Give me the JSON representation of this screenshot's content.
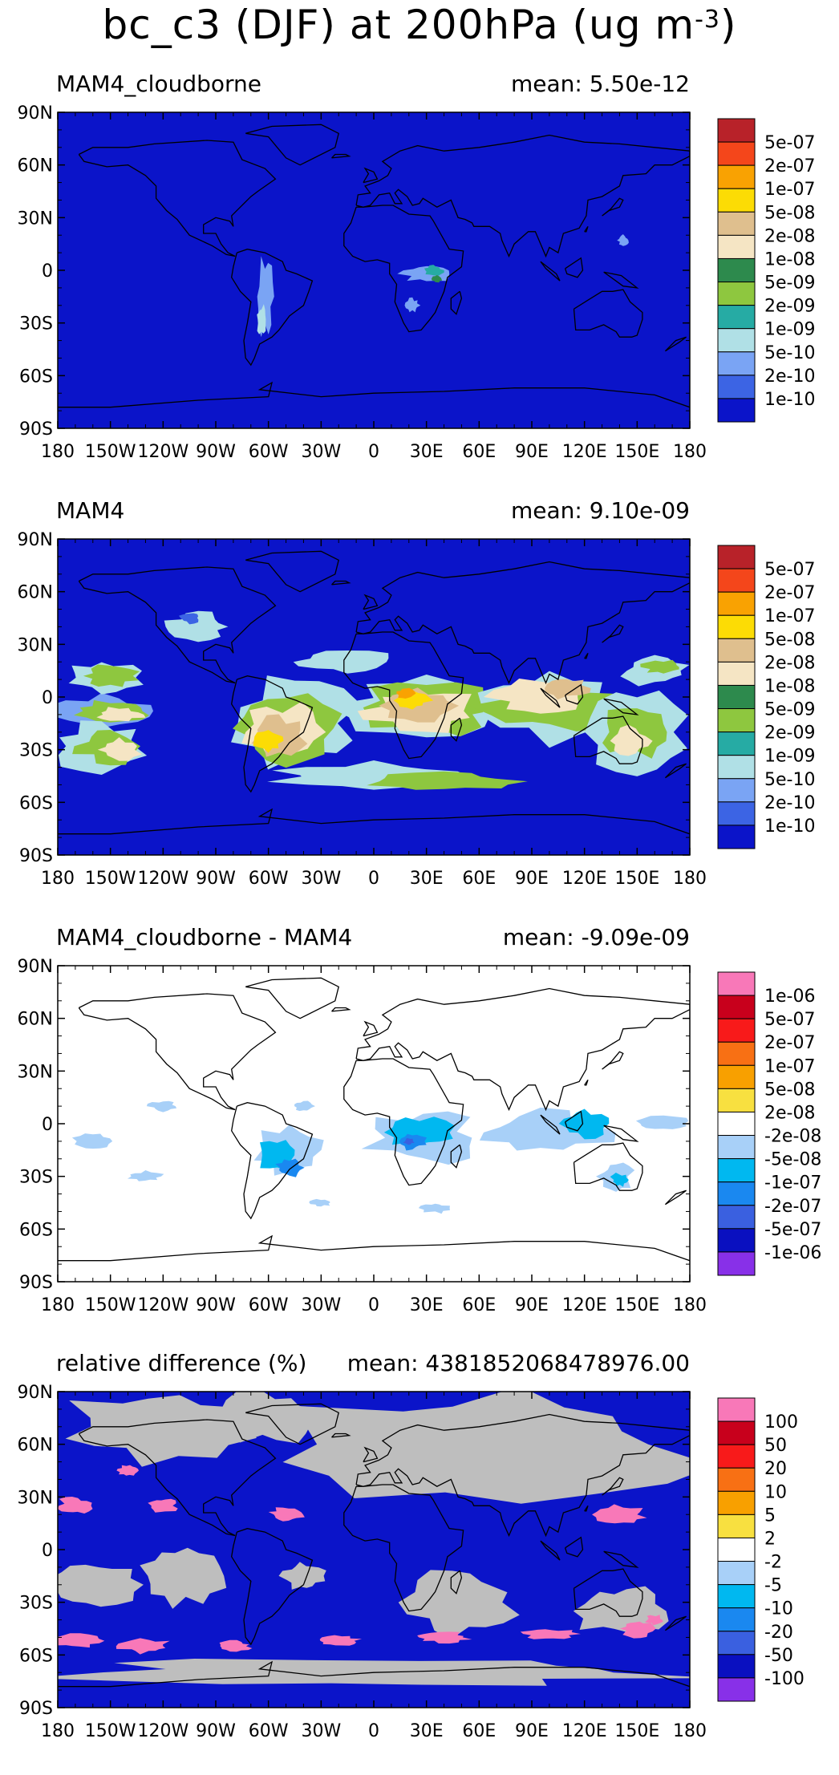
{
  "title": {
    "main": "bc_c3 (DJF) at 200hPa (ug m",
    "superscript": "-3",
    "close": ")"
  },
  "x_ticks": [
    "180",
    "150W",
    "120W",
    "90W",
    "60W",
    "30W",
    "0",
    "30E",
    "60E",
    "90E",
    "120E",
    "150E",
    "180"
  ],
  "y_ticks": [
    "90N",
    "60N",
    "30N",
    "0",
    "30S",
    "60S",
    "90S"
  ],
  "panels": [
    {
      "name": "MAM4_cloudborne",
      "mean_label": "mean: 5.50e-12",
      "background": "#0b14c9",
      "levels": [
        "5e-07",
        "2e-07",
        "1e-07",
        "5e-08",
        "2e-08",
        "1e-08",
        "5e-09",
        "2e-09",
        "1e-09",
        "5e-10",
        "2e-10",
        "1e-10"
      ],
      "colors": [
        "#b82229",
        "#f4461b",
        "#f9a202",
        "#fcdc05",
        "#dfbf8e",
        "#f5e5c4",
        "#2d8a4d",
        "#8ec73f",
        "#26aba4",
        "#b0e0e6",
        "#7aa4f4",
        "#3c64e4",
        "#0b14c9"
      ]
    },
    {
      "name": "MAM4",
      "mean_label": "mean: 9.10e-09",
      "background": "#0b14c9",
      "levels": [
        "5e-07",
        "2e-07",
        "1e-07",
        "5e-08",
        "2e-08",
        "1e-08",
        "5e-09",
        "2e-09",
        "1e-09",
        "5e-10",
        "2e-10",
        "1e-10"
      ],
      "colors": [
        "#b82229",
        "#f4461b",
        "#f9a202",
        "#fcdc05",
        "#dfbf8e",
        "#f5e5c4",
        "#2d8a4d",
        "#8ec73f",
        "#26aba4",
        "#b0e0e6",
        "#7aa4f4",
        "#3c64e4",
        "#0b14c9"
      ]
    },
    {
      "name": "MAM4_cloudborne - MAM4",
      "mean_label": "mean: -9.09e-09",
      "background": "#ffffff",
      "levels": [
        "1e-06",
        "5e-07",
        "2e-07",
        "1e-07",
        "5e-08",
        "2e-08",
        "-2e-08",
        "-5e-08",
        "-1e-07",
        "-2e-07",
        "-5e-07",
        "-1e-06"
      ],
      "colors": [
        "#f878b8",
        "#c8001c",
        "#f81a1a",
        "#f87014",
        "#f8a000",
        "#f8e040",
        "#ffffff",
        "#a8d0f8",
        "#00b8f0",
        "#1a88f0",
        "#3a60e0",
        "#0a10c0",
        "#8830e8"
      ]
    },
    {
      "name": "relative difference (%)",
      "mean_label": "mean: 4381852068478976.00",
      "background": "#0b14c9",
      "levels": [
        "100",
        "50",
        "20",
        "10",
        "5",
        "2",
        "-2",
        "-5",
        "-10",
        "-20",
        "-50",
        "-100"
      ],
      "colors": [
        "#f878b8",
        "#c8001c",
        "#f81a1a",
        "#f87014",
        "#f8a000",
        "#f8e040",
        "#ffffff",
        "#a8d0f8",
        "#00b8f0",
        "#1a88f0",
        "#3a60e0",
        "#0a10c0",
        "#8830e8"
      ]
    }
  ]
}
